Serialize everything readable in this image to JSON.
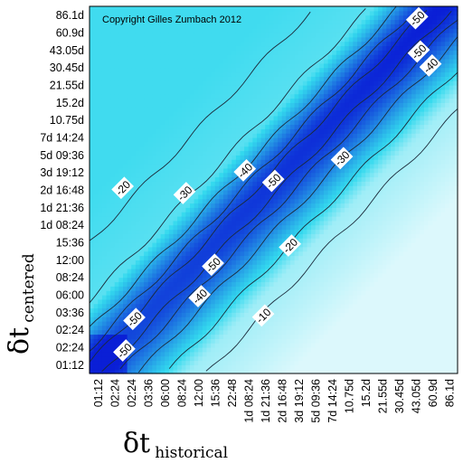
{
  "chart_data": {
    "type": "heatmap",
    "title": "",
    "copyright": "Copyright Gilles Zumbach 2012",
    "xlabel": {
      "main": "δt",
      "sub": "historical"
    },
    "ylabel": {
      "main": "δt",
      "sub": "centered"
    },
    "x_ticks": [
      "01:12",
      "02:24",
      "02:24",
      "03:36",
      "06:00",
      "08:24",
      "12:00",
      "15:36",
      "22:48",
      "1d 08:24",
      "1d 21:36",
      "2d 16:48",
      "3d 19:12",
      "5d 09:36",
      "7d 14:24",
      "10.75d",
      "15.2d",
      "21.55d",
      "30.45d",
      "43.05d",
      "60.9d",
      "86.1d"
    ],
    "y_ticks": [
      "01:12",
      "02:24",
      "02:24",
      "03:36",
      "06:00",
      "08:24",
      "12:00",
      "15:36",
      "1d 08:24",
      "1d 21:36",
      "2d 16:48",
      "3d 19:12",
      "5d 09:36",
      "7d 14:24",
      "10.75d",
      "15.2d",
      "21.55d",
      "30.45d",
      "43.05d",
      "60.9d",
      "86.1d"
    ],
    "contour_levels": [
      -10,
      -20,
      -30,
      -40,
      -50
    ],
    "contour_labels": [
      {
        "text": "-20",
        "x": 2.0,
        "y": 10.6
      },
      {
        "text": "-30",
        "x": 5.7,
        "y": 10.3
      },
      {
        "text": "-40",
        "x": 9.3,
        "y": 11.6
      },
      {
        "text": "-50",
        "x": 11.0,
        "y": 11.0
      },
      {
        "text": "-50",
        "x": 7.4,
        "y": 6.2
      },
      {
        "text": "-40",
        "x": 6.6,
        "y": 4.4
      },
      {
        "text": "-50",
        "x": 2.7,
        "y": 3.1
      },
      {
        "text": "-50",
        "x": 2.1,
        "y": 1.3
      },
      {
        "text": "-30",
        "x": 15.1,
        "y": 12.3
      },
      {
        "text": "-20",
        "x": 12.0,
        "y": 7.3
      },
      {
        "text": "-10",
        "x": 10.4,
        "y": 3.3
      },
      {
        "text": "-50",
        "x": 19.6,
        "y": 20.3
      },
      {
        "text": "-50",
        "x": 19.7,
        "y": 18.4
      },
      {
        "text": "-40",
        "x": 20.4,
        "y": 17.6
      }
    ],
    "colors": {
      "low": "#ffffff",
      "mid": "#33d9ee",
      "high": "#0a1fd6"
    },
    "grid": false,
    "legend": "none"
  }
}
